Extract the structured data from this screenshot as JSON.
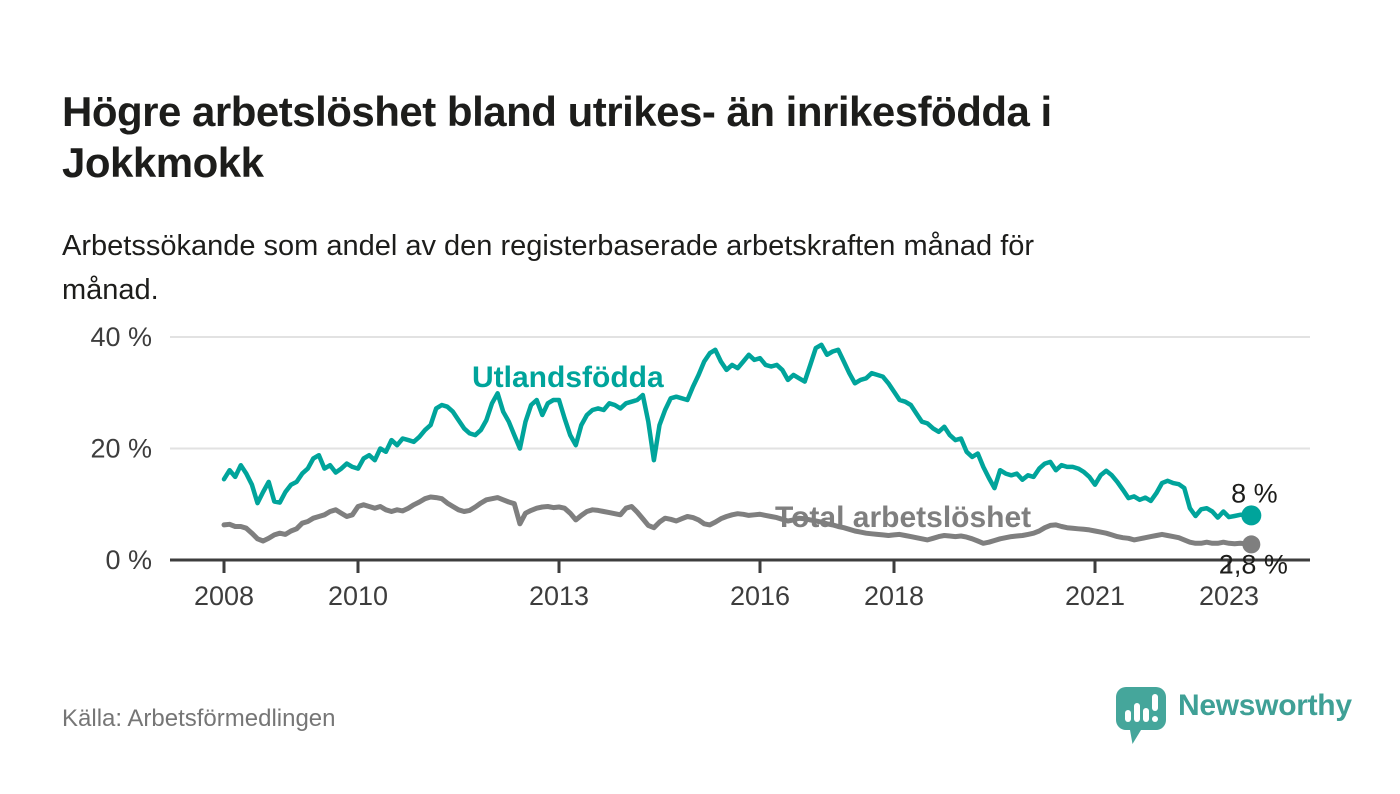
{
  "title": {
    "full": "Högre arbetslöshet bland utrikes- än inrikesfödda i Jokkmokk",
    "line1": "Högre arbetslöshet bland utrikes- än inrikesfödda i",
    "line2": "Jokkmokk"
  },
  "subtitle": {
    "full": "Arbetssökande som andel av den registerbaserade arbetskraften månad för månad.",
    "line1": "Arbetssökande som andel av den registerbaserade arbetskraften månad för",
    "line2": "månad."
  },
  "source": "Källa: Arbetsförmedlingen",
  "branding": {
    "logo_text": "Newsworthy",
    "logo_color": "#3fa096"
  },
  "chart_data": {
    "type": "line",
    "title": "Högre arbetslöshet bland utrikes- än inrikesfödda i Jokkmokk",
    "subtitle": "Arbetssökande som andel av den registerbaserade arbetskraften månad för månad.",
    "unit": "%",
    "frequency": "monthly",
    "x_start": "2008-01",
    "x_end": "2023-05",
    "ylim": [
      0,
      42
    ],
    "grid": "horizontal",
    "legend_position": "inline-labels",
    "colors": {
      "grid": "#e2e2e2",
      "axis": "#3d3d3d",
      "tick_label": "#3d3d3d",
      "end_label": "#1d1d1b"
    },
    "y_ticks": [
      {
        "label": "0 %",
        "value": 0
      },
      {
        "label": "20 %",
        "value": 20
      },
      {
        "label": "40 %",
        "value": 40
      }
    ],
    "x_ticks": [
      {
        "label": "2008",
        "year": 2008
      },
      {
        "label": "2010",
        "year": 2010
      },
      {
        "label": "2013",
        "year": 2013
      },
      {
        "label": "2016",
        "year": 2016
      },
      {
        "label": "2018",
        "year": 2018
      },
      {
        "label": "2021",
        "year": 2021
      },
      {
        "label": "2023",
        "year": 2023
      }
    ],
    "series": [
      {
        "id": "utlandsfodda",
        "name": "Utlandsfödda",
        "color": "#00a49b",
        "end_label": "8 %",
        "last_value": 8.0,
        "values": [
          14.5,
          16.1,
          14.9,
          17.0,
          15.5,
          13.5,
          10.2,
          12.2,
          14.0,
          10.5,
          10.3,
          12.2,
          13.5,
          14.0,
          15.5,
          16.4,
          18.2,
          18.8,
          16.4,
          17.0,
          15.7,
          16.4,
          17.3,
          16.7,
          16.4,
          18.2,
          18.8,
          17.9,
          20.0,
          19.4,
          21.5,
          20.6,
          21.8,
          21.5,
          21.2,
          22.1,
          23.3,
          24.2,
          27.2,
          27.8,
          27.5,
          26.6,
          25.1,
          23.6,
          22.7,
          22.4,
          23.3,
          25.1,
          28.1,
          29.9,
          26.6,
          24.8,
          22.4,
          20.0,
          24.8,
          27.8,
          28.7,
          26.0,
          28.1,
          28.7,
          28.7,
          25.4,
          22.4,
          20.6,
          24.2,
          26.0,
          26.9,
          27.2,
          26.9,
          28.1,
          27.8,
          27.2,
          28.1,
          28.4,
          28.7,
          29.6,
          24.8,
          17.9,
          24.2,
          26.9,
          29.0,
          29.3,
          29.0,
          28.7,
          31.1,
          33.2,
          35.6,
          37.1,
          37.7,
          35.6,
          34.1,
          35.0,
          34.4,
          35.6,
          36.8,
          35.9,
          36.2,
          35.0,
          34.7,
          35.0,
          34.1,
          32.3,
          33.2,
          32.6,
          32.0,
          35.0,
          38.0,
          38.6,
          36.8,
          37.4,
          37.7,
          35.6,
          33.5,
          31.7,
          32.3,
          32.6,
          33.5,
          33.2,
          32.9,
          31.7,
          30.2,
          28.7,
          28.4,
          27.8,
          26.3,
          24.8,
          24.5,
          23.6,
          23.0,
          23.9,
          22.4,
          21.5,
          21.8,
          19.4,
          18.5,
          19.1,
          16.7,
          14.7,
          12.9,
          16.1,
          15.5,
          15.2,
          15.5,
          14.4,
          15.2,
          14.9,
          16.4,
          17.3,
          17.6,
          16.1,
          17.0,
          16.7,
          16.7,
          16.4,
          15.8,
          14.9,
          13.5,
          15.2,
          16.0,
          15.2,
          14.0,
          12.6,
          11.1,
          11.4,
          10.8,
          11.2,
          10.6,
          12.0,
          13.8,
          14.2,
          13.8,
          13.6,
          12.9,
          9.3,
          7.9,
          9.1,
          9.3,
          8.7,
          7.6,
          8.7,
          7.7,
          7.9,
          8.1,
          8.1,
          8.0
        ]
      },
      {
        "id": "total",
        "name": "Total arbetslöshet",
        "color": "#7f7f7f",
        "end_label": "2,8 %",
        "last_value": 2.8,
        "values": [
          6.3,
          6.4,
          6.0,
          6.0,
          5.7,
          4.8,
          3.8,
          3.4,
          3.9,
          4.5,
          4.8,
          4.6,
          5.2,
          5.6,
          6.6,
          6.9,
          7.5,
          7.8,
          8.1,
          8.7,
          9.0,
          8.4,
          7.8,
          8.1,
          9.6,
          9.9,
          9.6,
          9.3,
          9.6,
          9.0,
          8.7,
          9.0,
          8.8,
          9.3,
          9.9,
          10.4,
          11.0,
          11.3,
          11.2,
          11.0,
          10.2,
          9.6,
          9.0,
          8.7,
          8.9,
          9.5,
          10.2,
          10.8,
          11.0,
          11.2,
          10.8,
          10.4,
          10.1,
          6.5,
          8.4,
          8.9,
          9.3,
          9.5,
          9.6,
          9.4,
          9.5,
          9.3,
          8.4,
          7.2,
          8.0,
          8.7,
          9.0,
          8.9,
          8.7,
          8.5,
          8.3,
          8.1,
          9.3,
          9.6,
          8.6,
          7.4,
          6.2,
          5.8,
          6.8,
          7.5,
          7.3,
          7.0,
          7.4,
          7.8,
          7.6,
          7.2,
          6.5,
          6.3,
          6.8,
          7.4,
          7.8,
          8.1,
          8.3,
          8.2,
          8.0,
          8.1,
          8.2,
          8.0,
          7.8,
          7.6,
          7.3,
          7.0,
          7.2,
          7.5,
          7.4,
          7.2,
          7.0,
          6.8,
          6.5,
          6.3,
          6.0,
          5.8,
          5.5,
          5.2,
          5.0,
          4.8,
          4.7,
          4.6,
          4.5,
          4.4,
          4.5,
          4.6,
          4.4,
          4.2,
          4.0,
          3.8,
          3.6,
          3.9,
          4.2,
          4.4,
          4.3,
          4.2,
          4.3,
          4.1,
          3.8,
          3.4,
          3.0,
          3.2,
          3.5,
          3.8,
          4.0,
          4.2,
          4.3,
          4.4,
          4.6,
          4.8,
          5.2,
          5.8,
          6.2,
          6.3,
          6.0,
          5.8,
          5.7,
          5.6,
          5.5,
          5.4,
          5.2,
          5.0,
          4.8,
          4.5,
          4.2,
          4.0,
          3.9,
          3.6,
          3.8,
          4.0,
          4.2,
          4.4,
          4.6,
          4.4,
          4.2,
          4.0,
          3.6,
          3.2,
          3.0,
          3.0,
          3.2,
          3.0,
          3.0,
          3.2,
          3.0,
          2.9,
          3.0,
          2.9,
          2.8
        ]
      }
    ]
  }
}
